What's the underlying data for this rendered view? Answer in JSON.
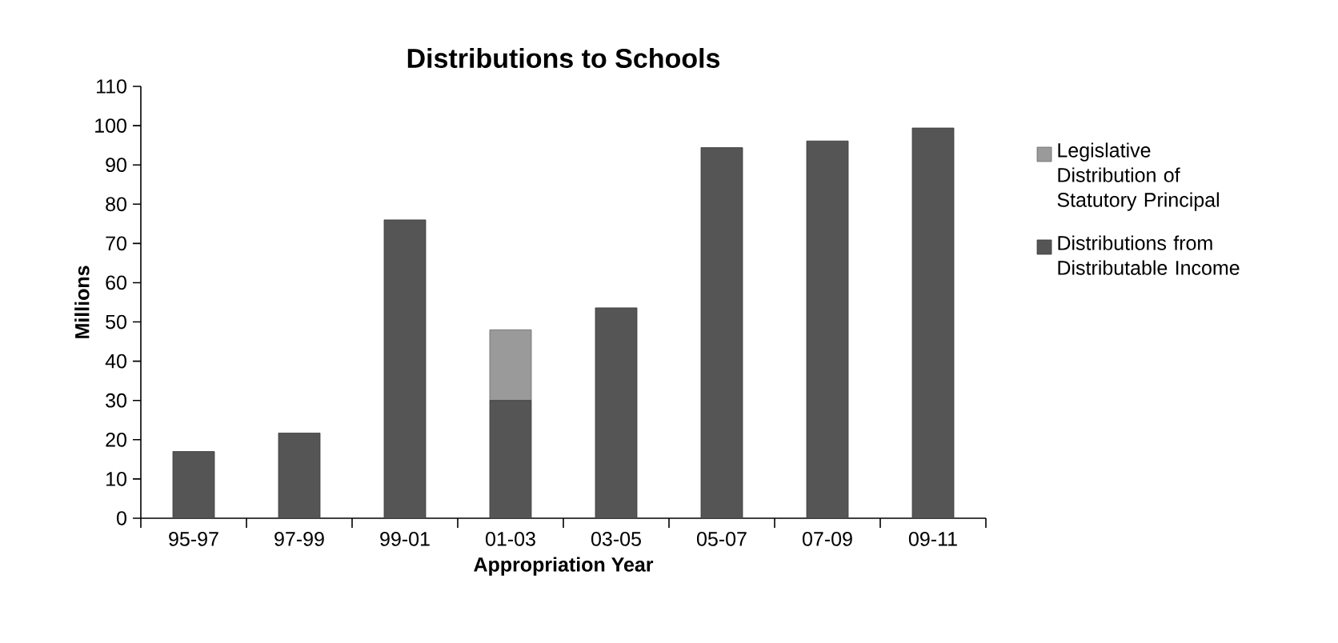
{
  "chart_data": {
    "type": "bar",
    "title": "Distributions to Schools",
    "xlabel": "Appropriation Year",
    "ylabel": "Millions",
    "categories": [
      "95-97",
      "97-99",
      "99-01",
      "01-03",
      "03-05",
      "05-07",
      "07-09",
      "09-11"
    ],
    "stacked": true,
    "series": [
      {
        "name": "Distributions from Distributable Income",
        "color": "#555555",
        "values": [
          17,
          21.7,
          76,
          30,
          53.6,
          94.4,
          96.1,
          99.4
        ]
      },
      {
        "name": "Legislative Distribution of Statutory Principal",
        "color": "#9a9a9a",
        "values": [
          null,
          null,
          null,
          18,
          null,
          null,
          null,
          null
        ]
      }
    ],
    "ylim": [
      0,
      110
    ],
    "yticks": [
      0,
      10,
      20,
      30,
      40,
      50,
      60,
      70,
      80,
      90,
      100,
      110
    ],
    "grid": false,
    "legend": "right"
  }
}
